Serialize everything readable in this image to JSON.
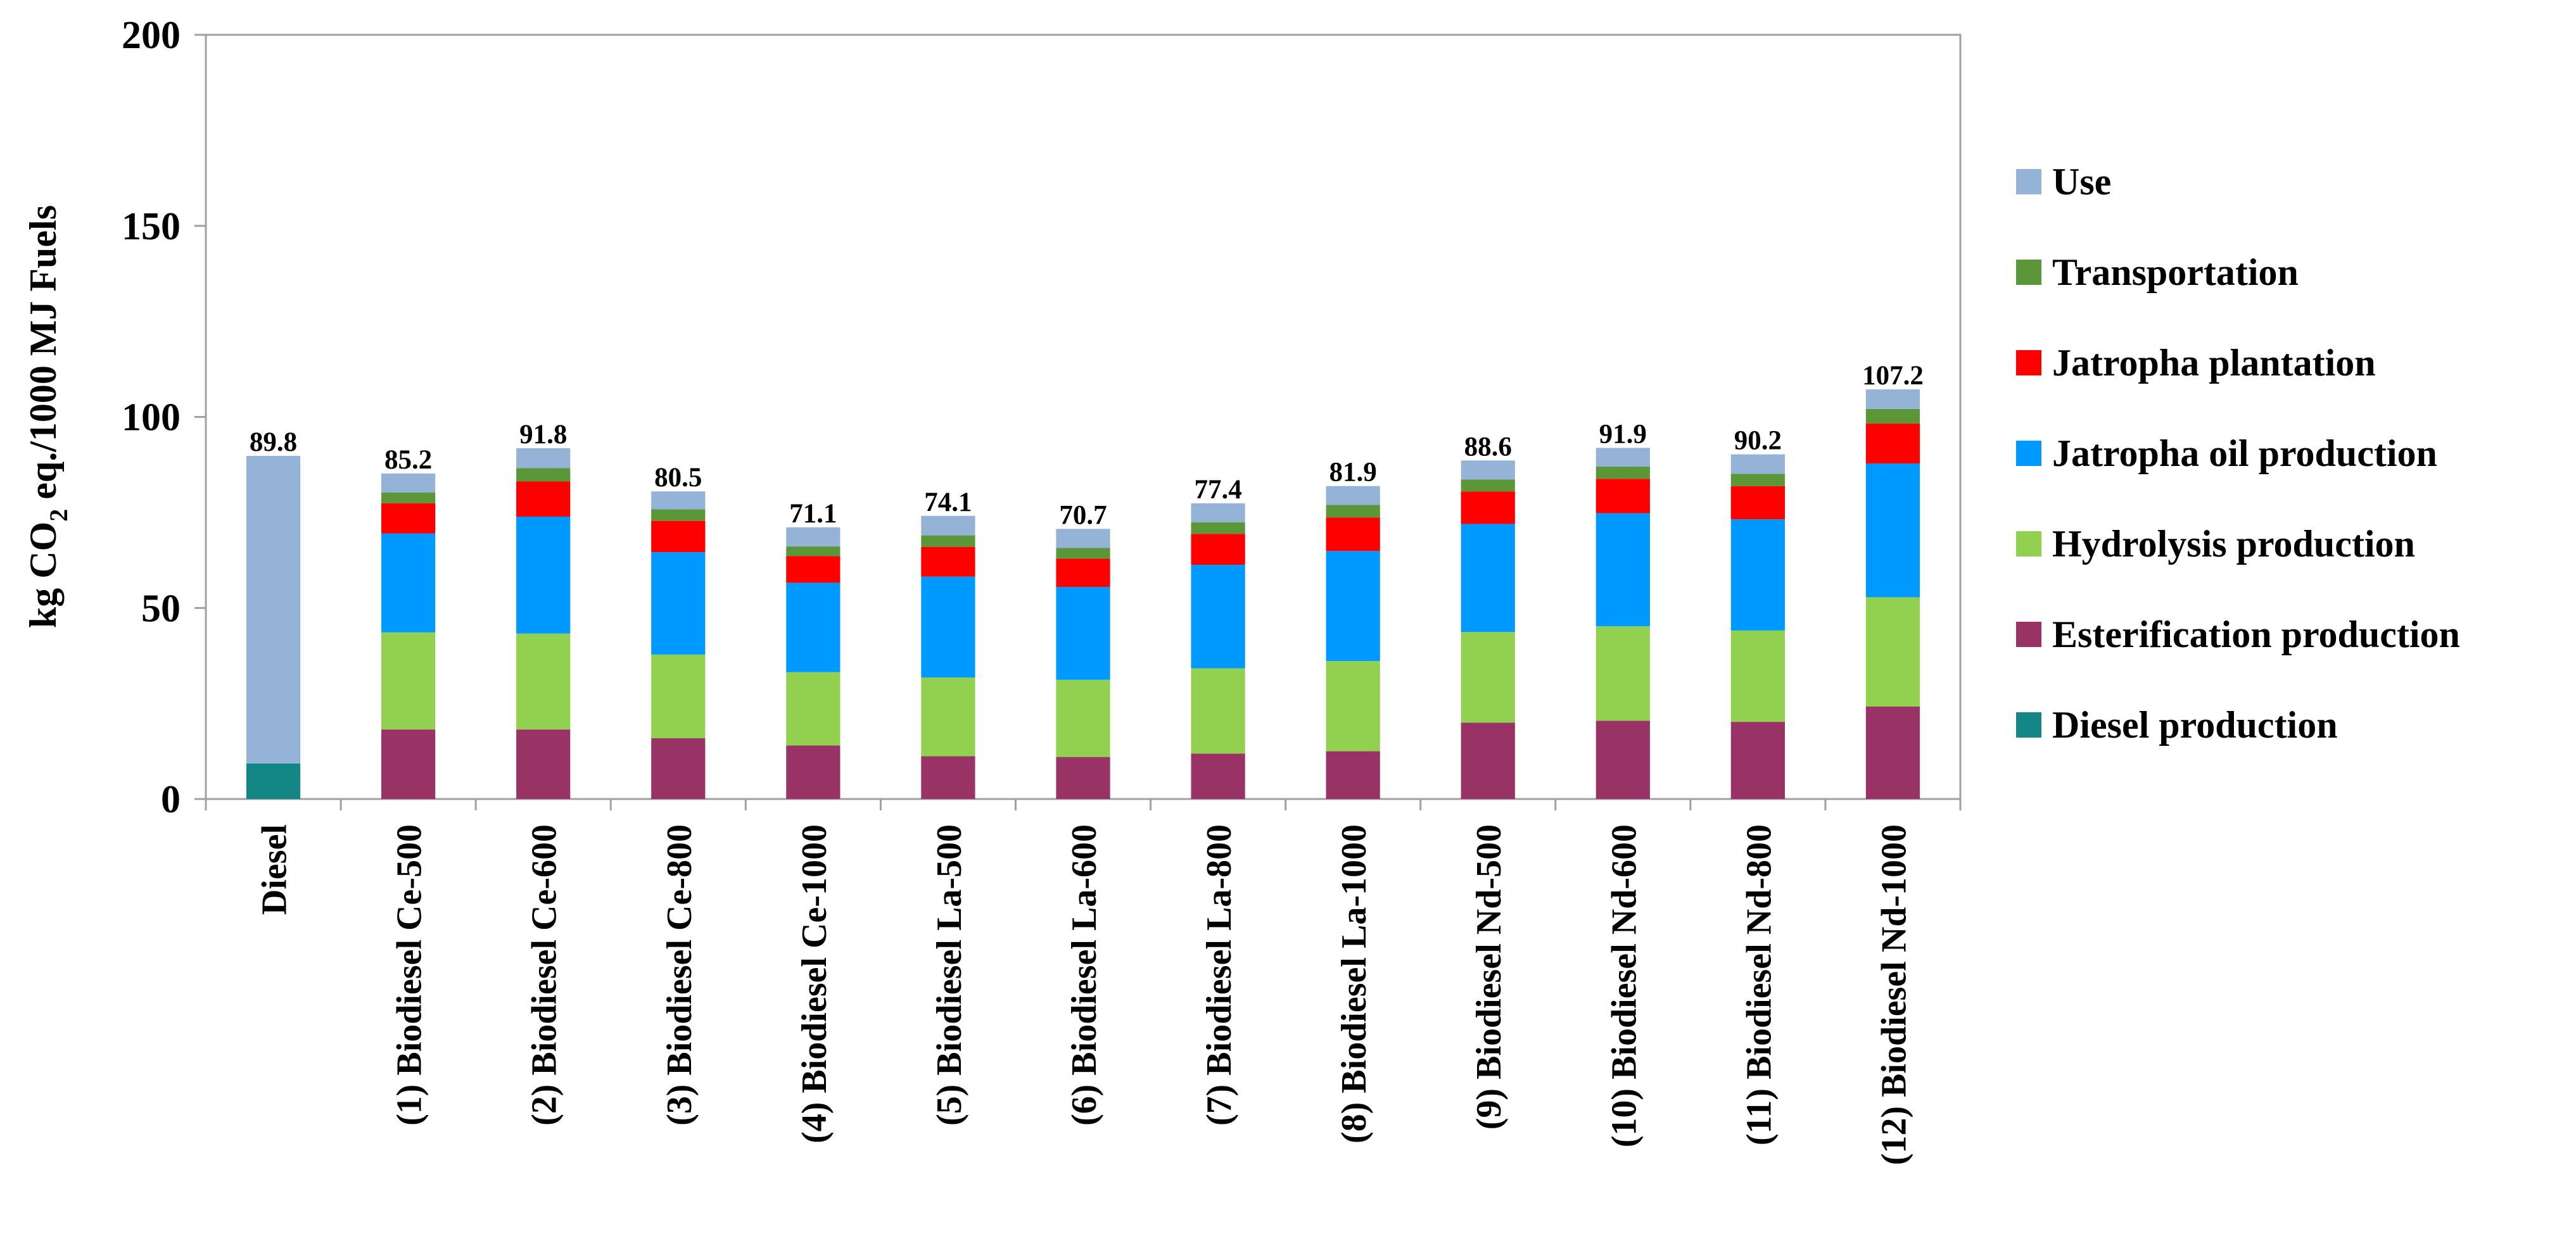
{
  "chart_data": {
    "type": "bar",
    "stacked": true,
    "title": "",
    "xlabel": "",
    "ylabel_parts": [
      "kg CO",
      "2",
      " eq./1000 MJ Fuels"
    ],
    "ylim": [
      0,
      200
    ],
    "yticks": [
      "0",
      "50",
      "100",
      "150",
      "200"
    ],
    "grid": false,
    "legend_position": "right",
    "categories": [
      "Diesel",
      "(1) Biodiesel Ce-500",
      "(2) Biodiesel Ce-600",
      "(3) Biodiesel Ce-800",
      "(4) Biodiesel Ce-1000",
      "(5) Biodiesel La-500",
      "(6) Biodiesel La-600",
      "(7) Biodiesel La-800",
      "(8) Biodiesel La-1000",
      "(9) Biodiesel Nd-500",
      "(10) Biodiesel Nd-600",
      "(11) Biodiesel Nd-800",
      "(12) Biodiesel Nd-1000"
    ],
    "totals": [
      "89.8",
      "85.2",
      "91.8",
      "80.5",
      "71.1",
      "74.1",
      "70.7",
      "77.4",
      "81.9",
      "88.6",
      "91.9",
      "90.2",
      "107.2"
    ],
    "series": [
      {
        "name": "Diesel production",
        "color": "#138685",
        "values": [
          9.3,
          0,
          0,
          0,
          0,
          0,
          0,
          0,
          0,
          0,
          0,
          0,
          0
        ]
      },
      {
        "name": "Esterification production",
        "color": "#993366",
        "values": [
          0,
          18.2,
          18.2,
          15.9,
          14.0,
          11.2,
          11.0,
          11.9,
          12.5,
          20.0,
          20.5,
          20.2,
          24.2
        ]
      },
      {
        "name": "Hydrolysis production",
        "color": "#92D050",
        "values": [
          0,
          25.4,
          25.1,
          21.9,
          19.2,
          20.6,
          20.2,
          22.3,
          23.6,
          23.7,
          24.7,
          23.9,
          28.6
        ]
      },
      {
        "name": "Jatropha oil production",
        "color": "#0099FF",
        "values": [
          0,
          25.9,
          30.6,
          26.8,
          23.4,
          26.4,
          24.3,
          27.1,
          28.8,
          28.3,
          29.6,
          29.1,
          35.0
        ]
      },
      {
        "name": "Jatropha plantation",
        "color": "#FF0000",
        "values": [
          0,
          7.9,
          9.2,
          8.2,
          7.0,
          7.8,
          7.4,
          8.1,
          8.8,
          8.5,
          9.0,
          8.7,
          10.5
        ]
      },
      {
        "name": "Transportation",
        "color": "#5B9638",
        "values": [
          0,
          2.8,
          3.5,
          3.0,
          2.5,
          3.0,
          2.8,
          3.0,
          3.3,
          3.1,
          3.2,
          3.2,
          3.8
        ]
      },
      {
        "name": "Use",
        "color": "#95B3D7",
        "values": [
          80.5,
          5.0,
          5.2,
          4.7,
          5.0,
          5.1,
          5.0,
          5.0,
          4.9,
          5.0,
          4.9,
          5.1,
          5.1
        ]
      }
    ],
    "legend_order": [
      "Use",
      "Transportation",
      "Jatropha plantation",
      "Jatropha oil production",
      "Hydrolysis production",
      "Esterification production",
      "Diesel production"
    ]
  }
}
